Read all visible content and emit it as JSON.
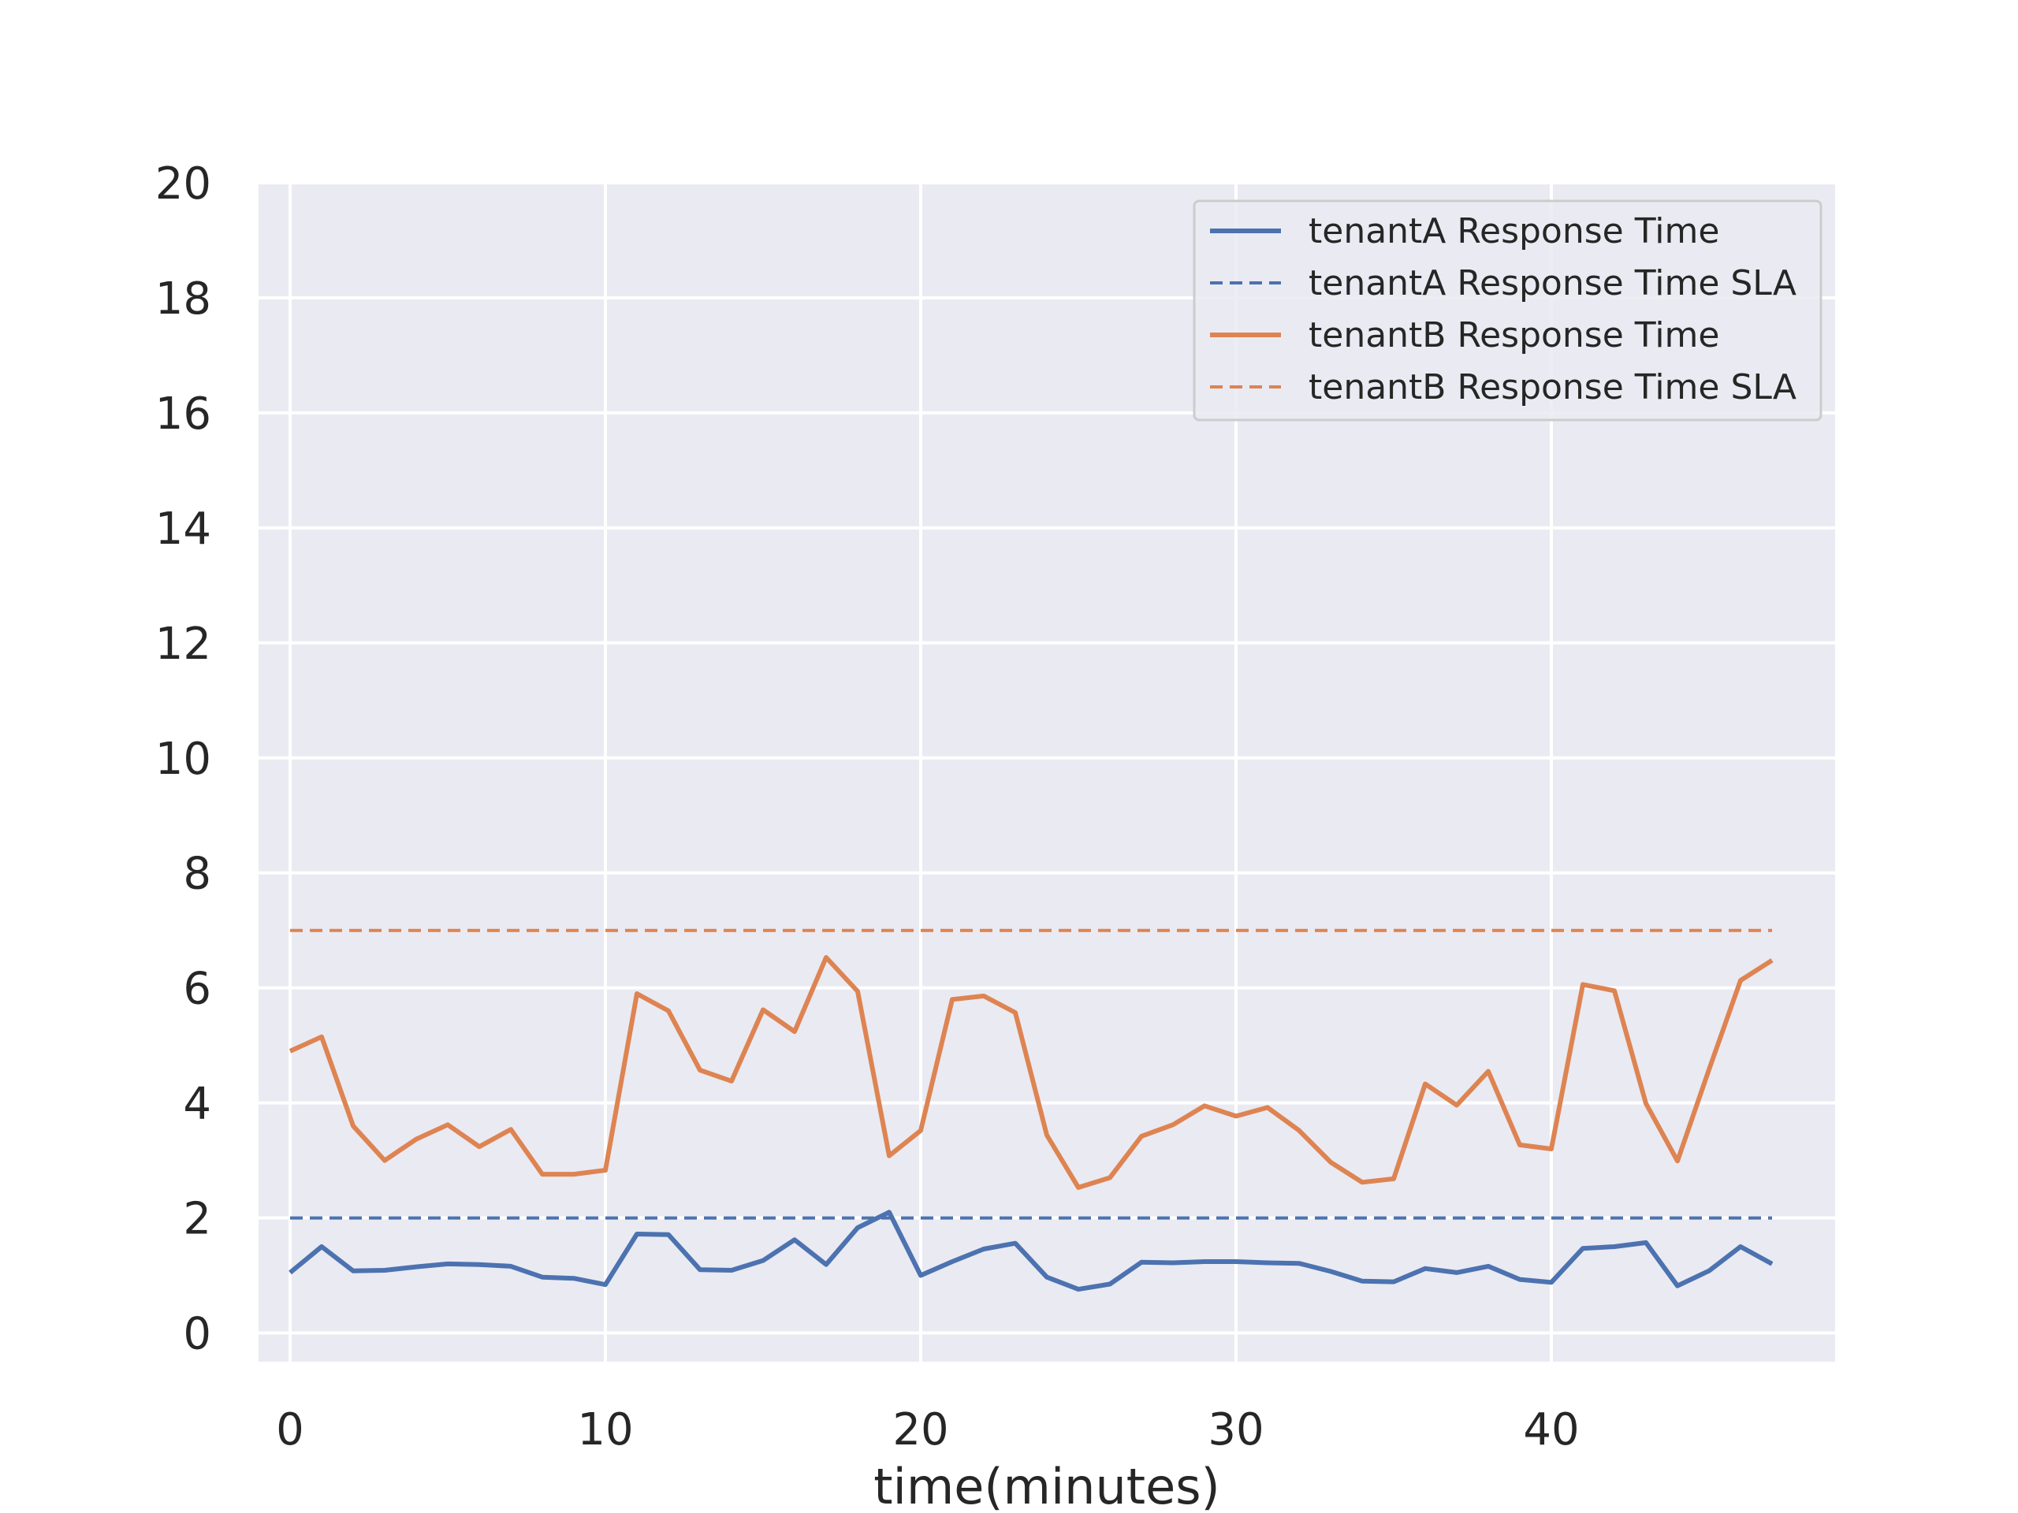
{
  "chart_data": {
    "type": "line",
    "title": "",
    "xlabel": "time(minutes)",
    "ylabel": "",
    "xlim": [
      -1,
      49
    ],
    "ylim": [
      -0.5,
      20
    ],
    "xticks": [
      0,
      10,
      20,
      30,
      40
    ],
    "yticks": [
      0,
      2,
      4,
      6,
      8,
      10,
      12,
      14,
      16,
      18,
      20
    ],
    "grid": true,
    "legend_position": "top-right",
    "x": [
      0,
      1,
      2,
      3,
      4,
      5,
      6,
      7,
      8,
      9,
      10,
      11,
      12,
      13,
      14,
      15,
      16,
      17,
      18,
      19,
      20,
      21,
      22,
      23,
      24,
      25,
      26,
      27,
      28,
      29,
      30,
      31,
      32,
      33,
      34,
      35,
      36,
      37,
      38,
      39,
      40,
      41,
      42,
      43,
      44,
      45,
      46,
      47
    ],
    "series": [
      {
        "name": "tenantA Response Time",
        "color": "#4c72b0",
        "style": "solid",
        "values": [
          1.05,
          1.5,
          1.08,
          1.09,
          1.15,
          1.2,
          1.19,
          1.16,
          0.97,
          0.95,
          0.84,
          1.72,
          1.71,
          1.1,
          1.09,
          1.26,
          1.62,
          1.19,
          1.83,
          2.1,
          1.0,
          1.24,
          1.46,
          1.56,
          0.97,
          0.76,
          0.85,
          1.23,
          1.22,
          1.24,
          1.24,
          1.22,
          1.21,
          1.07,
          0.9,
          0.89,
          1.12,
          1.05,
          1.16,
          0.93,
          0.88,
          1.47,
          1.5,
          1.57,
          0.82,
          1.08,
          1.5,
          1.2
        ]
      },
      {
        "name": "tenantA Response Time SLA",
        "color": "#4c72b0",
        "style": "dashed",
        "values": [
          2,
          2,
          2,
          2,
          2,
          2,
          2,
          2,
          2,
          2,
          2,
          2,
          2,
          2,
          2,
          2,
          2,
          2,
          2,
          2,
          2,
          2,
          2,
          2,
          2,
          2,
          2,
          2,
          2,
          2,
          2,
          2,
          2,
          2,
          2,
          2,
          2,
          2,
          2,
          2,
          2,
          2,
          2,
          2,
          2,
          2,
          2,
          2
        ]
      },
      {
        "name": "tenantB Response Time",
        "color": "#dd8452",
        "style": "solid",
        "values": [
          4.9,
          5.15,
          3.6,
          3.0,
          3.37,
          3.62,
          3.24,
          3.54,
          2.76,
          2.76,
          2.83,
          5.9,
          5.6,
          4.57,
          4.38,
          5.62,
          5.24,
          6.53,
          5.94,
          3.08,
          3.52,
          5.8,
          5.86,
          5.57,
          3.44,
          2.53,
          2.7,
          3.42,
          3.62,
          3.95,
          3.77,
          3.92,
          3.52,
          2.97,
          2.62,
          2.68,
          4.33,
          3.96,
          4.55,
          3.27,
          3.2,
          6.06,
          5.95,
          3.99,
          2.99,
          4.58,
          6.13,
          6.48
        ]
      },
      {
        "name": "tenantB Response Time SLA",
        "color": "#dd8452",
        "style": "dashed",
        "values": [
          7,
          7,
          7,
          7,
          7,
          7,
          7,
          7,
          7,
          7,
          7,
          7,
          7,
          7,
          7,
          7,
          7,
          7,
          7,
          7,
          7,
          7,
          7,
          7,
          7,
          7,
          7,
          7,
          7,
          7,
          7,
          7,
          7,
          7,
          7,
          7,
          7,
          7,
          7,
          7,
          7,
          7,
          7,
          7,
          7,
          7,
          7,
          7
        ]
      }
    ]
  }
}
